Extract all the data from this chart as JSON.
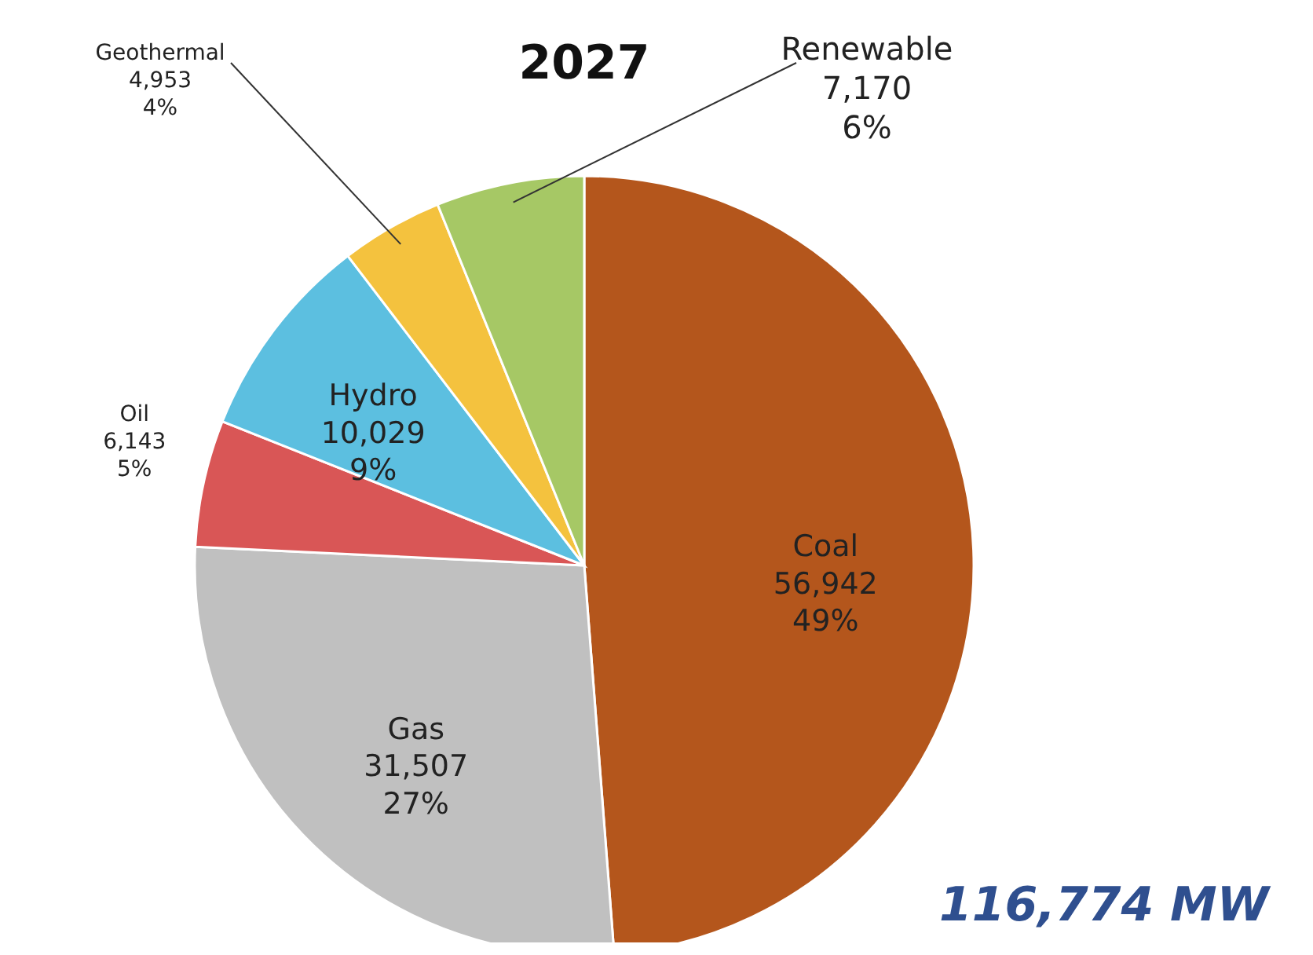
{
  "chart_data": {
    "type": "pie",
    "title": "2027",
    "categories": [
      "Coal",
      "Gas",
      "Oil",
      "Hydro",
      "Geothermal",
      "Renewable"
    ],
    "values": [
      56942,
      31507,
      6143,
      10029,
      4953,
      7170
    ],
    "value_labels": [
      "56,942\n49%",
      "31,507\n27%",
      "6,143\n5%",
      "10,029\n9%",
      "4,953\n4%",
      "7,170\n6%"
    ],
    "colors": [
      "#b4561c",
      "#c0c0c0",
      "#d95656",
      "#5cbfe0",
      "#f4c23e",
      "#a6c865"
    ],
    "annotations": [
      "116,774 MW"
    ]
  }
}
